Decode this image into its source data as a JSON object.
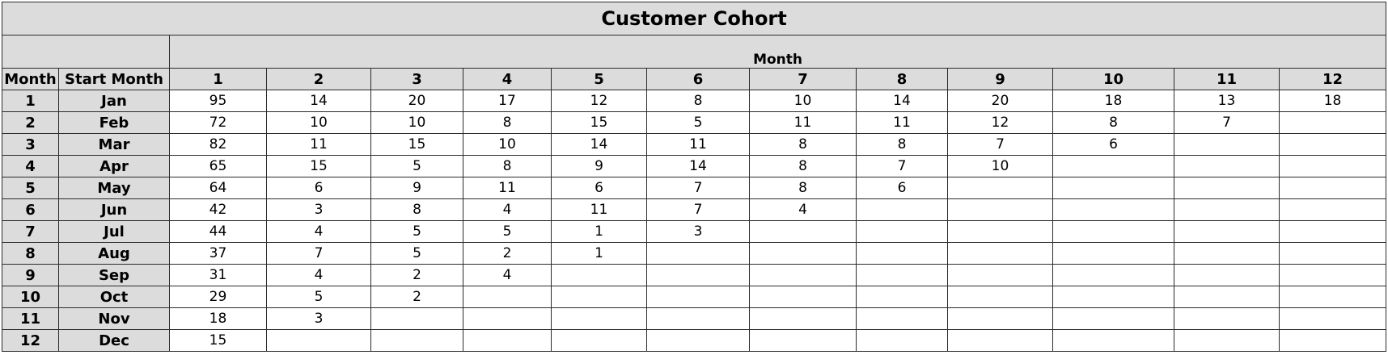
{
  "title": "Customer Cohort",
  "month_group_label": "Month",
  "headers": {
    "row_index": "Month",
    "start_month": "Start Month",
    "periods": [
      "1",
      "2",
      "3",
      "4",
      "5",
      "6",
      "7",
      "8",
      "9",
      "10",
      "11",
      "12"
    ]
  },
  "rows": [
    {
      "index": "1",
      "start": "Jan",
      "values": [
        "95",
        "14",
        "20",
        "17",
        "12",
        "8",
        "10",
        "14",
        "20",
        "18",
        "13",
        "18"
      ]
    },
    {
      "index": "2",
      "start": "Feb",
      "values": [
        "72",
        "10",
        "10",
        "8",
        "15",
        "5",
        "11",
        "11",
        "12",
        "8",
        "7",
        ""
      ]
    },
    {
      "index": "3",
      "start": "Mar",
      "values": [
        "82",
        "11",
        "15",
        "10",
        "14",
        "11",
        "8",
        "8",
        "7",
        "6",
        "",
        ""
      ]
    },
    {
      "index": "4",
      "start": "Apr",
      "values": [
        "65",
        "15",
        "5",
        "8",
        "9",
        "14",
        "8",
        "7",
        "10",
        "",
        "",
        ""
      ]
    },
    {
      "index": "5",
      "start": "May",
      "values": [
        "64",
        "6",
        "9",
        "11",
        "6",
        "7",
        "8",
        "6",
        "",
        "",
        "",
        ""
      ]
    },
    {
      "index": "6",
      "start": "Jun",
      "values": [
        "42",
        "3",
        "8",
        "4",
        "11",
        "7",
        "4",
        "",
        "",
        "",
        "",
        ""
      ]
    },
    {
      "index": "7",
      "start": "Jul",
      "values": [
        "44",
        "4",
        "5",
        "5",
        "1",
        "3",
        "",
        "",
        "",
        "",
        "",
        ""
      ]
    },
    {
      "index": "8",
      "start": "Aug",
      "values": [
        "37",
        "7",
        "5",
        "2",
        "1",
        "",
        "",
        "",
        "",
        "",
        "",
        ""
      ]
    },
    {
      "index": "9",
      "start": "Sep",
      "values": [
        "31",
        "4",
        "2",
        "4",
        "",
        "",
        "",
        "",
        "",
        "",
        "",
        ""
      ]
    },
    {
      "index": "10",
      "start": "Oct",
      "values": [
        "29",
        "5",
        "2",
        "",
        "",
        "",
        "",
        "",
        "",
        "",
        "",
        ""
      ]
    },
    {
      "index": "11",
      "start": "Nov",
      "values": [
        "18",
        "3",
        "",
        "",
        "",
        "",
        "",
        "",
        "",
        "",
        "",
        ""
      ]
    },
    {
      "index": "12",
      "start": "Dec",
      "values": [
        "15",
        "",
        "",
        "",
        "",
        "",
        "",
        "",
        "",
        "",
        "",
        ""
      ]
    }
  ]
}
